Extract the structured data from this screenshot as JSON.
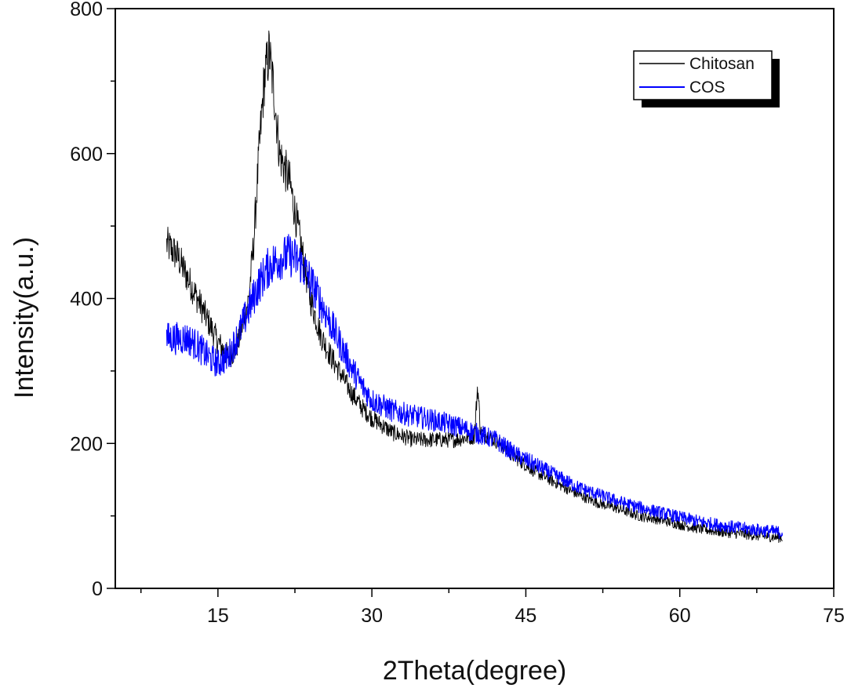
{
  "chart_data": {
    "type": "line",
    "title": "",
    "xlabel": "2Theta(degree)",
    "ylabel": "Intensity(a.u.)",
    "xlim": [
      5,
      75
    ],
    "ylim": [
      0,
      800
    ],
    "xticks": [
      15,
      30,
      45,
      60,
      75
    ],
    "yticks": [
      0,
      200,
      400,
      600,
      800
    ],
    "grid": false,
    "legend_position": "top-right",
    "series": [
      {
        "name": "Chitosan",
        "color": "#000000",
        "x": [
          10,
          11,
          12,
          13,
          14,
          15,
          16,
          16.5,
          17,
          18,
          18.5,
          19,
          19.5,
          20,
          20.5,
          21,
          21.5,
          22,
          22.5,
          23,
          23.5,
          24,
          25,
          26,
          27,
          28,
          29,
          30,
          32,
          34,
          36,
          38,
          40,
          40.3,
          40.6,
          42,
          44,
          46,
          48,
          50,
          52,
          54,
          56,
          58,
          60,
          62,
          64,
          66,
          68,
          70
        ],
        "y": [
          475,
          460,
          430,
          400,
          370,
          340,
          320,
          325,
          340,
          400,
          480,
          600,
          700,
          740,
          680,
          600,
          580,
          560,
          520,
          480,
          440,
          400,
          350,
          320,
          295,
          270,
          250,
          235,
          215,
          205,
          205,
          205,
          210,
          280,
          215,
          205,
          180,
          160,
          145,
          130,
          118,
          110,
          100,
          95,
          88,
          82,
          78,
          75,
          72,
          70
        ]
      },
      {
        "name": "COS",
        "color": "#0000ff",
        "x": [
          10,
          11,
          12,
          13,
          14,
          15,
          16,
          17,
          18,
          19,
          20,
          21,
          22,
          23,
          24,
          25,
          26,
          27,
          28,
          29,
          30,
          32,
          34,
          36,
          38,
          40,
          42,
          44,
          46,
          48,
          50,
          52,
          54,
          56,
          58,
          60,
          62,
          64,
          66,
          68,
          70
        ],
        "y": [
          345,
          345,
          345,
          335,
          320,
          310,
          320,
          350,
          385,
          420,
          445,
          455,
          460,
          450,
          425,
          395,
          365,
          335,
          305,
          280,
          260,
          245,
          238,
          232,
          225,
          215,
          205,
          185,
          170,
          155,
          140,
          130,
          120,
          112,
          105,
          98,
          92,
          87,
          83,
          80,
          77
        ]
      }
    ]
  }
}
